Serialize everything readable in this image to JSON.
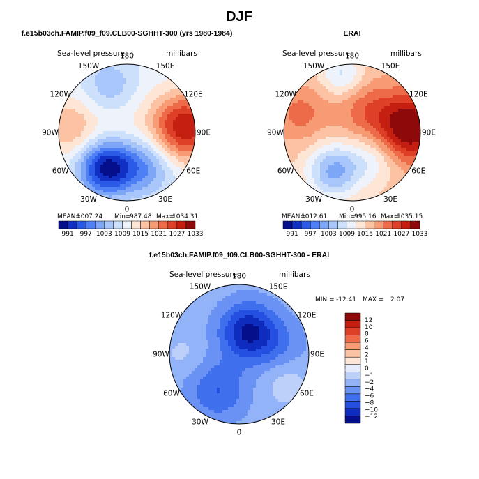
{
  "figure": {
    "title": "DJF"
  },
  "colors": {
    "abs_scale": [
      "#050f8c",
      "#1030c4",
      "#2a5ae6",
      "#4f7ff5",
      "#7ea6f7",
      "#a8c6fa",
      "#cde0fb",
      "#eef3fb",
      "#fde6d6",
      "#fbc3a3",
      "#f69b74",
      "#ee6b4a",
      "#de3f27",
      "#c51f12",
      "#8e0a0a"
    ],
    "diff_scale": [
      "#050f8c",
      "#0e2cbe",
      "#244fe0",
      "#3f6fed",
      "#6a92f4",
      "#93b3f8",
      "#bcd0fa",
      "#e4ecfb",
      "#fde6d6",
      "#fbc3a3",
      "#f69b74",
      "#ee6b4a",
      "#de3f27",
      "#c51f12",
      "#8e0a0a"
    ]
  },
  "chart_data": [
    {
      "type": "heatmap",
      "projection": "north-polar-stereographic",
      "title": "f.e15b03ch.FAMIP.f09_f09.CLB00-SGHHT-300 (yrs 1980-1984)",
      "left_label": "Sea-level pressure",
      "right_label": "millibars",
      "longitude_labels": [
        "180",
        "150E",
        "120E",
        "90E",
        "60E",
        "30E",
        "0",
        "30W",
        "60W",
        "90W",
        "120W",
        "150W"
      ],
      "stats": {
        "mean_label": "MEAN=",
        "mean": "1007.24",
        "min_label": "Min=",
        "min": "987.48",
        "max_label": "Max=",
        "max": "1034.31"
      },
      "colorbar_ticks": [
        "991",
        "997",
        "1003",
        "1009",
        "1015",
        "1021",
        "1027",
        "1033"
      ],
      "field": {
        "base": 1010,
        "features": [
          {
            "lon": 200,
            "r": 0.75,
            "amp": -6,
            "w": 0.28
          },
          {
            "lon": 330,
            "r": 0.6,
            "amp": -20,
            "w": 0.28
          },
          {
            "lon": 30,
            "r": 0.55,
            "amp": -10,
            "w": 0.3
          },
          {
            "lon": 95,
            "r": 0.85,
            "amp": 20,
            "w": 0.35
          },
          {
            "lon": 265,
            "r": 0.85,
            "amp": 8,
            "w": 0.3
          },
          {
            "lon": 0,
            "r": 0.0,
            "amp": 2,
            "w": 0.35
          }
        ]
      }
    },
    {
      "type": "heatmap",
      "projection": "north-polar-stereographic",
      "title": "ERAI",
      "left_label": "Sea-level pressure",
      "right_label": "millibars",
      "longitude_labels": [
        "180",
        "150E",
        "120E",
        "90E",
        "60E",
        "30E",
        "0",
        "30W",
        "60W",
        "90W",
        "120W",
        "150W"
      ],
      "stats": {
        "mean_label": "MEAN=",
        "mean": "1012.61",
        "min_label": "Min=",
        "min": "995.16",
        "max_label": "Max=",
        "max": "1035.15"
      },
      "colorbar_ticks": [
        "991",
        "997",
        "1003",
        "1009",
        "1015",
        "1021",
        "1027",
        "1033"
      ],
      "field": {
        "base": 1016,
        "features": [
          {
            "lon": 190,
            "r": 0.85,
            "amp": -8,
            "w": 0.22
          },
          {
            "lon": 335,
            "r": 0.62,
            "amp": -14,
            "w": 0.28
          },
          {
            "lon": 40,
            "r": 0.5,
            "amp": -6,
            "w": 0.25
          },
          {
            "lon": 95,
            "r": 0.85,
            "amp": 18,
            "w": 0.35
          },
          {
            "lon": 150,
            "r": 0.4,
            "amp": 6,
            "w": 0.3
          },
          {
            "lon": 250,
            "r": 0.8,
            "amp": 6,
            "w": 0.3
          }
        ]
      }
    },
    {
      "type": "heatmap",
      "projection": "north-polar-stereographic",
      "title": "f.e15b03ch.FAMIP.f09_f09.CLB00-SGHHT-300 - ERAI",
      "left_label": "Sea-level pressure",
      "right_label": "millibars",
      "longitude_labels": [
        "180",
        "150E",
        "120E",
        "90E",
        "60E",
        "30E",
        "0",
        "30W",
        "60W",
        "90W",
        "120W",
        "150W"
      ],
      "stats": {
        "min_label": "MIN =",
        "min": "-12.41",
        "max_label": "MAX =",
        "max": "2.07"
      },
      "colorbar_ticks": [
        "12",
        "10",
        "8",
        "6",
        "4",
        "2",
        "1",
        "0",
        "−1",
        "−2",
        "−4",
        "−6",
        "−8",
        "−10",
        "−12"
      ],
      "field": {
        "base": -3,
        "features": [
          {
            "lon": 160,
            "r": 0.35,
            "amp": -9,
            "w": 0.28
          },
          {
            "lon": 330,
            "r": 0.6,
            "amp": -5,
            "w": 0.3
          },
          {
            "lon": 60,
            "r": 0.75,
            "amp": 2.5,
            "w": 0.25
          },
          {
            "lon": 270,
            "r": 0.8,
            "amp": 1.5,
            "w": 0.2
          },
          {
            "lon": 100,
            "r": 0.55,
            "amp": -3,
            "w": 0.3
          }
        ]
      }
    }
  ]
}
